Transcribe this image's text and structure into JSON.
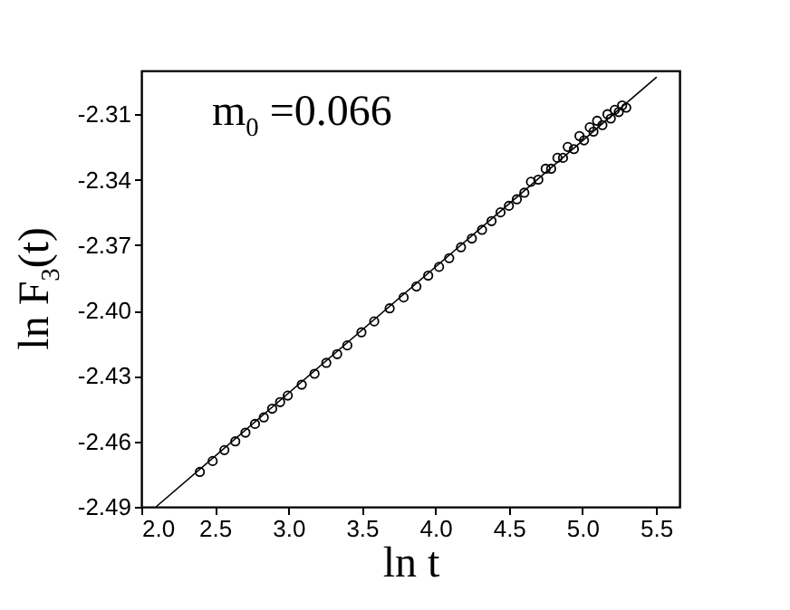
{
  "chart_data": {
    "type": "scatter",
    "xlabel": "ln t",
    "ylabel": "ln F$_{3}$(t)",
    "annotations": [
      "m$_{0}$ =0.066"
    ],
    "xlim": [
      2.0,
      5.66
    ],
    "ylim": [
      -2.49,
      -2.29
    ],
    "xticks": [
      {
        "value": 2,
        "label": "2.0"
      },
      2.5,
      {
        "value": 3,
        "label": "3.0"
      },
      3.5,
      {
        "value": 4,
        "label": "4.0"
      },
      4.5,
      {
        "value": 5,
        "label": "5.0"
      },
      5.5
    ],
    "yticks": [
      -2.49,
      -2.46,
      -2.43,
      {
        "value": -2.4,
        "label": "-2.40"
      },
      -2.37,
      -2.34,
      -2.31
    ],
    "grid": false,
    "series": [
      {
        "type": "scatter",
        "marker": "circle",
        "color": "#000000",
        "x": [
          2.398,
          2.485,
          2.565,
          2.639,
          2.708,
          2.773,
          2.833,
          2.89,
          2.944,
          2.996,
          3.091,
          3.178,
          3.258,
          3.332,
          3.401,
          3.497,
          3.584,
          3.689,
          3.784,
          3.871,
          3.951,
          4.025,
          4.094,
          4.174,
          4.248,
          4.317,
          4.382,
          4.443,
          4.5,
          4.554,
          4.605,
          4.65,
          4.7,
          4.75,
          4.787,
          4.83,
          4.868,
          4.9,
          4.942,
          4.98,
          5.011,
          5.05,
          5.075,
          5.1,
          5.136,
          5.17,
          5.193,
          5.22,
          5.247,
          5.27,
          5.298
        ],
        "values": [
          -2.474,
          -2.469,
          -2.464,
          -2.46,
          -2.456,
          -2.452,
          -2.449,
          -2.445,
          -2.442,
          -2.439,
          -2.434,
          -2.429,
          -2.424,
          -2.42,
          -2.416,
          -2.41,
          -2.405,
          -2.399,
          -2.394,
          -2.389,
          -2.384,
          -2.38,
          -2.376,
          -2.371,
          -2.367,
          -2.363,
          -2.359,
          -2.355,
          -2.352,
          -2.349,
          -2.346,
          -2.341,
          -2.34,
          -2.335,
          -2.335,
          -2.33,
          -2.33,
          -2.325,
          -2.326,
          -2.32,
          -2.322,
          -2.316,
          -2.318,
          -2.313,
          -2.315,
          -2.31,
          -2.312,
          -2.308,
          -2.309,
          -2.306,
          -2.307
        ]
      },
      {
        "type": "line",
        "marker": "none",
        "color": "#000000",
        "x": [
          2.1,
          5.505
        ],
        "values": [
          -2.49,
          -2.293
        ]
      }
    ]
  }
}
